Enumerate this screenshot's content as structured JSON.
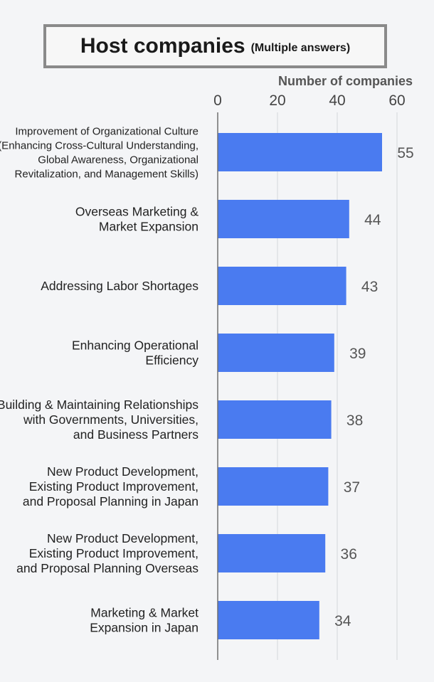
{
  "title": "Host companies",
  "subtitle": "(Multiple answers)",
  "colors": {
    "bar": "#4a7bf0",
    "grid": "#d3d6db",
    "axis": "#6f6f6f"
  },
  "chart_data": {
    "type": "bar",
    "orientation": "horizontal",
    "xlabel": "Number of companies",
    "xlim": [
      0,
      60
    ],
    "xticks": [
      0,
      20,
      40,
      60
    ],
    "grid": true,
    "categories": [
      [
        "Improvement of Organizational Culture",
        "(Enhancing Cross-Cultural Understanding,",
        "Global Awareness, Organizational",
        "Revitalization, and Management Skills)"
      ],
      [
        "Overseas Marketing &",
        "Market Expansion"
      ],
      [
        "Addressing Labor Shortages"
      ],
      [
        "Enhancing Operational",
        "Efficiency"
      ],
      [
        "Building & Maintaining Relationships",
        "with Governments, Universities,",
        "and Business Partners"
      ],
      [
        "New Product Development,",
        "Existing Product Improvement,",
        "and Proposal Planning in Japan"
      ],
      [
        "New Product Development,",
        "Existing Product Improvement,",
        "and Proposal Planning Overseas"
      ],
      [
        "Marketing & Market",
        "Expansion in Japan"
      ]
    ],
    "values": [
      55,
      44,
      43,
      39,
      38,
      37,
      36,
      34
    ]
  }
}
